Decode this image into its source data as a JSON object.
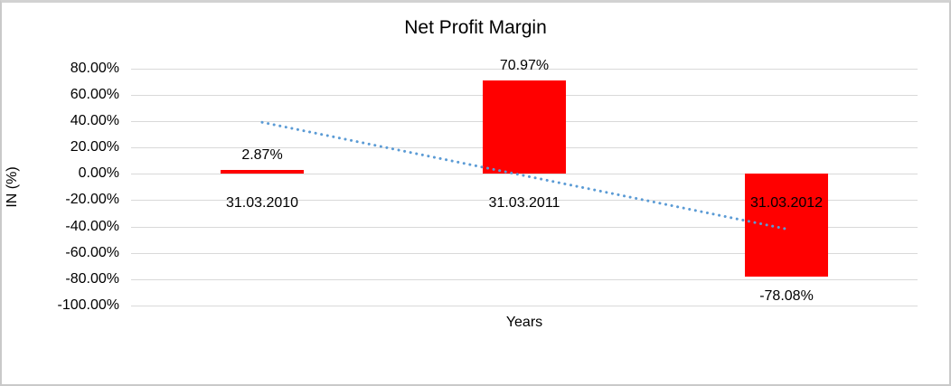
{
  "frame": {
    "background_color": "#ffffff",
    "border_color": "#c9c9c9"
  },
  "chart_data": {
    "type": "bar",
    "title": "Net Profit Margin",
    "xlabel": "Years",
    "ylabel": "IN (%)",
    "categories": [
      "31.03.2010",
      "31.03.2011",
      "31.03.2012"
    ],
    "values": [
      2.87,
      70.97,
      -78.08
    ],
    "value_labels": [
      "2.87%",
      "70.97%",
      "-78.08%"
    ],
    "bar_color": "#ff0000",
    "ylim": [
      -100,
      80
    ],
    "ytick_step": 20,
    "ytick_labels": [
      "80.00%",
      "60.00%",
      "40.00%",
      "20.00%",
      "0.00%",
      "-20.00%",
      "-40.00%",
      "-60.00%",
      "-80.00%",
      "-100.00%"
    ],
    "grid": true,
    "gridline_color": "#d9d9d9",
    "legend": "none",
    "trendline": {
      "type": "linear",
      "style": "dotted",
      "color": "#5b9bd5",
      "start_value": 39.1,
      "end_value": -41.9
    }
  }
}
